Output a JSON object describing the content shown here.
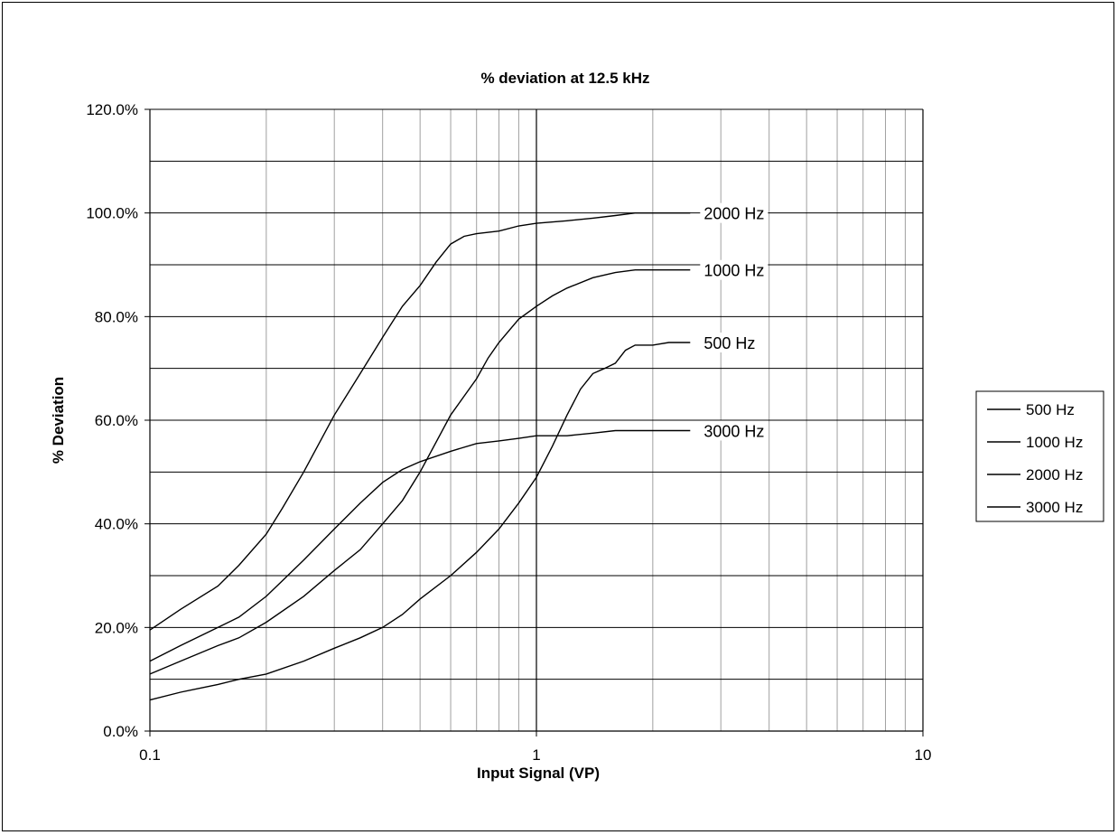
{
  "chart_data": {
    "type": "line",
    "title": "% deviation at 12.5 kHz",
    "xlabel": "Input Signal (VP)",
    "ylabel": "% Deviation",
    "x_scale": "log",
    "xlim": [
      0.1,
      10
    ],
    "ylim": [
      0,
      120
    ],
    "x_ticks": [
      "0.1",
      "1",
      "10"
    ],
    "y_ticks": [
      "0.0%",
      "20.0%",
      "40.0%",
      "60.0%",
      "80.0%",
      "100.0%",
      "120.0%"
    ],
    "grid": true,
    "legend_position": "right",
    "series": [
      {
        "name": "500 Hz",
        "label": "500 Hz",
        "x": [
          0.1,
          0.12,
          0.15,
          0.17,
          0.2,
          0.25,
          0.3,
          0.35,
          0.4,
          0.45,
          0.5,
          0.6,
          0.7,
          0.8,
          0.9,
          1.0,
          1.1,
          1.2,
          1.3,
          1.4,
          1.5,
          1.6,
          1.7,
          1.8,
          2.0,
          2.2,
          2.5
        ],
        "y": [
          6,
          7.5,
          9,
          10,
          11,
          13.5,
          16,
          18,
          20,
          22.5,
          25.5,
          30,
          34.5,
          39,
          44,
          49,
          55,
          61,
          66,
          69,
          70,
          71,
          73.5,
          74.5,
          74.5,
          75,
          75
        ]
      },
      {
        "name": "1000 Hz",
        "label": "1000 Hz",
        "x": [
          0.1,
          0.12,
          0.15,
          0.17,
          0.2,
          0.25,
          0.3,
          0.35,
          0.4,
          0.45,
          0.5,
          0.6,
          0.7,
          0.75,
          0.8,
          0.9,
          1.0,
          1.1,
          1.2,
          1.4,
          1.6,
          1.8,
          2.0,
          2.5
        ],
        "y": [
          11,
          13.5,
          16.5,
          18,
          21,
          26,
          31,
          35,
          40,
          44.5,
          50,
          61,
          68,
          72,
          75,
          79.5,
          82,
          84,
          85.5,
          87.5,
          88.5,
          89,
          89,
          89
        ]
      },
      {
        "name": "2000 Hz",
        "label": "2000 Hz",
        "x": [
          0.1,
          0.12,
          0.15,
          0.17,
          0.2,
          0.22,
          0.25,
          0.3,
          0.35,
          0.4,
          0.45,
          0.5,
          0.55,
          0.6,
          0.65,
          0.7,
          0.8,
          0.9,
          1.0,
          1.2,
          1.4,
          1.6,
          1.8,
          2.0,
          2.5
        ],
        "y": [
          19.5,
          23.5,
          28,
          32,
          38,
          43,
          50,
          61,
          69,
          76,
          82,
          86,
          90.5,
          94,
          95.5,
          96,
          96.5,
          97.5,
          98,
          98.5,
          99,
          99.5,
          100,
          100,
          100
        ]
      },
      {
        "name": "3000 Hz",
        "label": "3000 Hz",
        "x": [
          0.1,
          0.12,
          0.15,
          0.17,
          0.2,
          0.22,
          0.25,
          0.3,
          0.35,
          0.4,
          0.45,
          0.5,
          0.6,
          0.7,
          0.8,
          0.9,
          1.0,
          1.2,
          1.4,
          1.6,
          2.0,
          2.5
        ],
        "y": [
          13.5,
          16.5,
          20,
          22,
          26,
          29,
          33,
          39,
          44,
          48,
          50.5,
          52,
          54,
          55.5,
          56,
          56.5,
          57,
          57,
          57.5,
          58,
          58,
          58
        ]
      }
    ]
  }
}
